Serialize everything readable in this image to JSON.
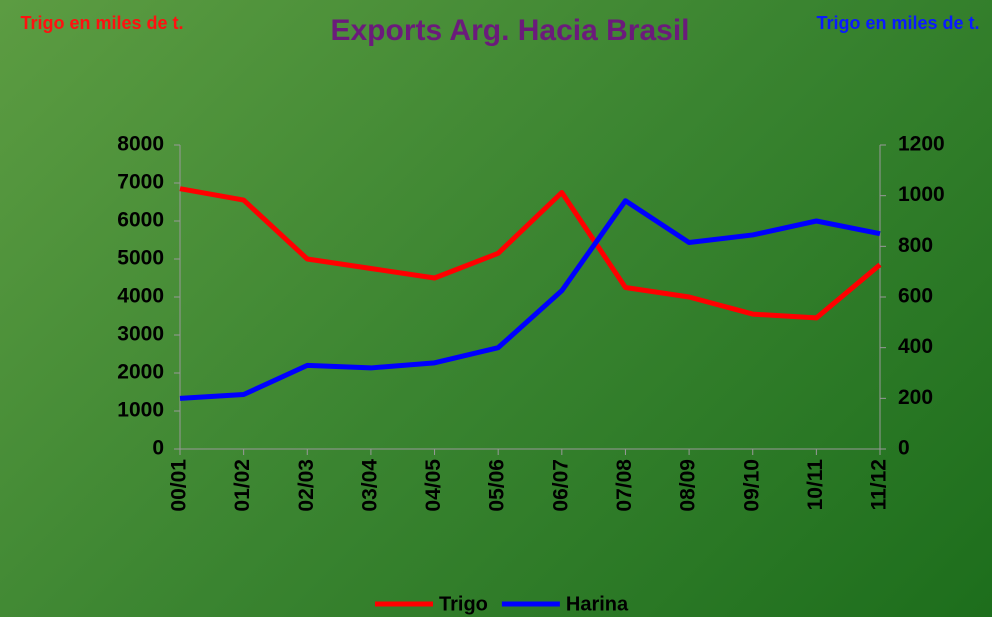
{
  "chart_data": {
    "type": "line",
    "title": "Exports Arg. Hacia Brasil",
    "ylabel": "Trigo en miles de t.",
    "y2label": "Trigo en miles de t.",
    "categories": [
      "00/01",
      "01/02",
      "02/03",
      "03/04",
      "04/05",
      "05/06",
      "06/07",
      "07/08",
      "08/09",
      "09/10",
      "10/11",
      "11/12"
    ],
    "series": [
      {
        "name": "Trigo",
        "color": "#ff0000",
        "values": [
          6850,
          6550,
          5000,
          4750,
          4500,
          5150,
          6750,
          4250,
          4000,
          3550,
          3450,
          4850
        ]
      },
      {
        "name": "Harina",
        "color": "#0000ff",
        "axis": "y2",
        "values": [
          200,
          215,
          330,
          320,
          340,
          400,
          625,
          980,
          815,
          845,
          900,
          850
        ]
      }
    ],
    "ylim": [
      0,
      8000
    ],
    "yticks": [
      0,
      1000,
      2000,
      3000,
      4000,
      5000,
      6000,
      7000,
      8000
    ],
    "y2lim": [
      0,
      1200
    ],
    "y2ticks": [
      0,
      200,
      400,
      600,
      800,
      1000,
      1200
    ],
    "legend": "bottom"
  }
}
